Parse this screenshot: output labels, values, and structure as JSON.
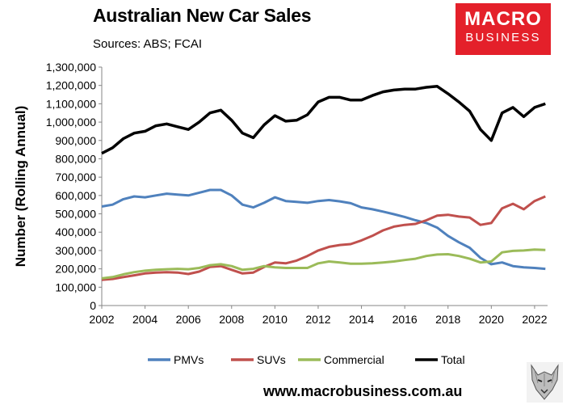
{
  "header": {
    "title": "Australian New Car Sales",
    "subtitle": "Sources: ABS; FCAI"
  },
  "logo": {
    "line1": "MACRO",
    "line2": "BUSINESS"
  },
  "footer": {
    "url": "www.macrobusiness.com.au"
  },
  "colors": {
    "pmvs": "#4f81bd",
    "suvs": "#c0504d",
    "commercial": "#9bbb59",
    "total": "#000000",
    "logo_bg": "#e4202a"
  },
  "chart_data": {
    "type": "line",
    "title": "Australian New Car Sales",
    "subtitle": "Sources: ABS; FCAI",
    "xlabel": "",
    "ylabel": "Number (Rolling Annual)",
    "xlim": [
      2002,
      2022.6
    ],
    "ylim": [
      0,
      1300000
    ],
    "x_ticks": [
      2002,
      2004,
      2006,
      2008,
      2010,
      2012,
      2014,
      2016,
      2018,
      2020,
      2022
    ],
    "y_ticks": [
      0,
      100000,
      200000,
      300000,
      400000,
      500000,
      600000,
      700000,
      800000,
      900000,
      1000000,
      1100000,
      1200000,
      1300000
    ],
    "y_tick_labels": [
      "0",
      "100,000",
      "200,000",
      "300,000",
      "400,000",
      "500,000",
      "600,000",
      "700,000",
      "800,000",
      "900,000",
      "1,000,000",
      "1,100,000",
      "1,200,000",
      "1,300,000"
    ],
    "grid": false,
    "legend": "bottom",
    "series": [
      {
        "name": "PMVs",
        "color": "#4f81bd",
        "points": [
          [
            2002,
            540000
          ],
          [
            2002.5,
            550000
          ],
          [
            2003,
            580000
          ],
          [
            2003.5,
            595000
          ],
          [
            2004,
            590000
          ],
          [
            2004.5,
            600000
          ],
          [
            2005,
            610000
          ],
          [
            2005.5,
            605000
          ],
          [
            2006,
            600000
          ],
          [
            2006.5,
            615000
          ],
          [
            2007,
            630000
          ],
          [
            2007.5,
            630000
          ],
          [
            2008,
            600000
          ],
          [
            2008.5,
            550000
          ],
          [
            2009,
            535000
          ],
          [
            2009.5,
            560000
          ],
          [
            2010,
            590000
          ],
          [
            2010.5,
            570000
          ],
          [
            2011,
            565000
          ],
          [
            2011.5,
            560000
          ],
          [
            2012,
            570000
          ],
          [
            2012.5,
            575000
          ],
          [
            2013,
            568000
          ],
          [
            2013.5,
            558000
          ],
          [
            2014,
            535000
          ],
          [
            2014.5,
            525000
          ],
          [
            2015,
            512000
          ],
          [
            2015.5,
            498000
          ],
          [
            2016,
            483000
          ],
          [
            2016.5,
            465000
          ],
          [
            2017,
            450000
          ],
          [
            2017.5,
            425000
          ],
          [
            2018,
            380000
          ],
          [
            2018.5,
            345000
          ],
          [
            2019,
            315000
          ],
          [
            2019.5,
            260000
          ],
          [
            2020,
            225000
          ],
          [
            2020.5,
            235000
          ],
          [
            2021,
            215000
          ],
          [
            2021.5,
            208000
          ],
          [
            2022,
            205000
          ],
          [
            2022.5,
            200000
          ]
        ]
      },
      {
        "name": "SUVs",
        "color": "#c0504d",
        "points": [
          [
            2002,
            140000
          ],
          [
            2002.5,
            145000
          ],
          [
            2003,
            155000
          ],
          [
            2003.5,
            165000
          ],
          [
            2004,
            175000
          ],
          [
            2004.5,
            180000
          ],
          [
            2005,
            182000
          ],
          [
            2005.5,
            180000
          ],
          [
            2006,
            172000
          ],
          [
            2006.5,
            185000
          ],
          [
            2007,
            210000
          ],
          [
            2007.5,
            215000
          ],
          [
            2008,
            195000
          ],
          [
            2008.5,
            175000
          ],
          [
            2009,
            180000
          ],
          [
            2009.5,
            210000
          ],
          [
            2010,
            235000
          ],
          [
            2010.5,
            230000
          ],
          [
            2011,
            245000
          ],
          [
            2011.5,
            270000
          ],
          [
            2012,
            300000
          ],
          [
            2012.5,
            320000
          ],
          [
            2013,
            330000
          ],
          [
            2013.5,
            335000
          ],
          [
            2014,
            355000
          ],
          [
            2014.5,
            380000
          ],
          [
            2015,
            410000
          ],
          [
            2015.5,
            430000
          ],
          [
            2016,
            440000
          ],
          [
            2016.5,
            445000
          ],
          [
            2017,
            465000
          ],
          [
            2017.5,
            490000
          ],
          [
            2018,
            495000
          ],
          [
            2018.5,
            485000
          ],
          [
            2019,
            480000
          ],
          [
            2019.5,
            440000
          ],
          [
            2020,
            450000
          ],
          [
            2020.5,
            530000
          ],
          [
            2021,
            555000
          ],
          [
            2021.5,
            525000
          ],
          [
            2022,
            570000
          ],
          [
            2022.5,
            595000
          ]
        ]
      },
      {
        "name": "Commercial",
        "color": "#9bbb59",
        "points": [
          [
            2002,
            148000
          ],
          [
            2002.5,
            155000
          ],
          [
            2003,
            170000
          ],
          [
            2003.5,
            182000
          ],
          [
            2004,
            190000
          ],
          [
            2004.5,
            195000
          ],
          [
            2005,
            198000
          ],
          [
            2005.5,
            200000
          ],
          [
            2006,
            198000
          ],
          [
            2006.5,
            205000
          ],
          [
            2007,
            220000
          ],
          [
            2007.5,
            225000
          ],
          [
            2008,
            215000
          ],
          [
            2008.5,
            195000
          ],
          [
            2009,
            200000
          ],
          [
            2009.5,
            215000
          ],
          [
            2010,
            208000
          ],
          [
            2010.5,
            205000
          ],
          [
            2011,
            205000
          ],
          [
            2011.5,
            205000
          ],
          [
            2012,
            230000
          ],
          [
            2012.5,
            240000
          ],
          [
            2013,
            235000
          ],
          [
            2013.5,
            228000
          ],
          [
            2014,
            228000
          ],
          [
            2014.5,
            230000
          ],
          [
            2015,
            235000
          ],
          [
            2015.5,
            240000
          ],
          [
            2016,
            248000
          ],
          [
            2016.5,
            255000
          ],
          [
            2017,
            270000
          ],
          [
            2017.5,
            278000
          ],
          [
            2018,
            280000
          ],
          [
            2018.5,
            270000
          ],
          [
            2019,
            255000
          ],
          [
            2019.5,
            235000
          ],
          [
            2020,
            240000
          ],
          [
            2020.5,
            290000
          ],
          [
            2021,
            298000
          ],
          [
            2021.5,
            300000
          ],
          [
            2022,
            305000
          ],
          [
            2022.5,
            303000
          ]
        ]
      },
      {
        "name": "Total",
        "color": "#000000",
        "points": [
          [
            2002,
            830000
          ],
          [
            2002.5,
            860000
          ],
          [
            2003,
            910000
          ],
          [
            2003.5,
            940000
          ],
          [
            2004,
            950000
          ],
          [
            2004.5,
            980000
          ],
          [
            2005,
            990000
          ],
          [
            2005.5,
            975000
          ],
          [
            2006,
            960000
          ],
          [
            2006.5,
            1000000
          ],
          [
            2007,
            1050000
          ],
          [
            2007.5,
            1065000
          ],
          [
            2008,
            1010000
          ],
          [
            2008.5,
            940000
          ],
          [
            2009,
            915000
          ],
          [
            2009.5,
            985000
          ],
          [
            2010,
            1035000
          ],
          [
            2010.5,
            1005000
          ],
          [
            2011,
            1010000
          ],
          [
            2011.5,
            1040000
          ],
          [
            2012,
            1110000
          ],
          [
            2012.5,
            1135000
          ],
          [
            2013,
            1135000
          ],
          [
            2013.5,
            1120000
          ],
          [
            2014,
            1120000
          ],
          [
            2014.5,
            1145000
          ],
          [
            2015,
            1165000
          ],
          [
            2015.5,
            1175000
          ],
          [
            2016,
            1180000
          ],
          [
            2016.5,
            1180000
          ],
          [
            2017,
            1190000
          ],
          [
            2017.5,
            1195000
          ],
          [
            2018,
            1155000
          ],
          [
            2018.5,
            1110000
          ],
          [
            2019,
            1060000
          ],
          [
            2019.5,
            960000
          ],
          [
            2020,
            900000
          ],
          [
            2020.5,
            1050000
          ],
          [
            2021,
            1080000
          ],
          [
            2021.5,
            1030000
          ],
          [
            2022,
            1080000
          ],
          [
            2022.5,
            1100000
          ]
        ]
      }
    ]
  }
}
